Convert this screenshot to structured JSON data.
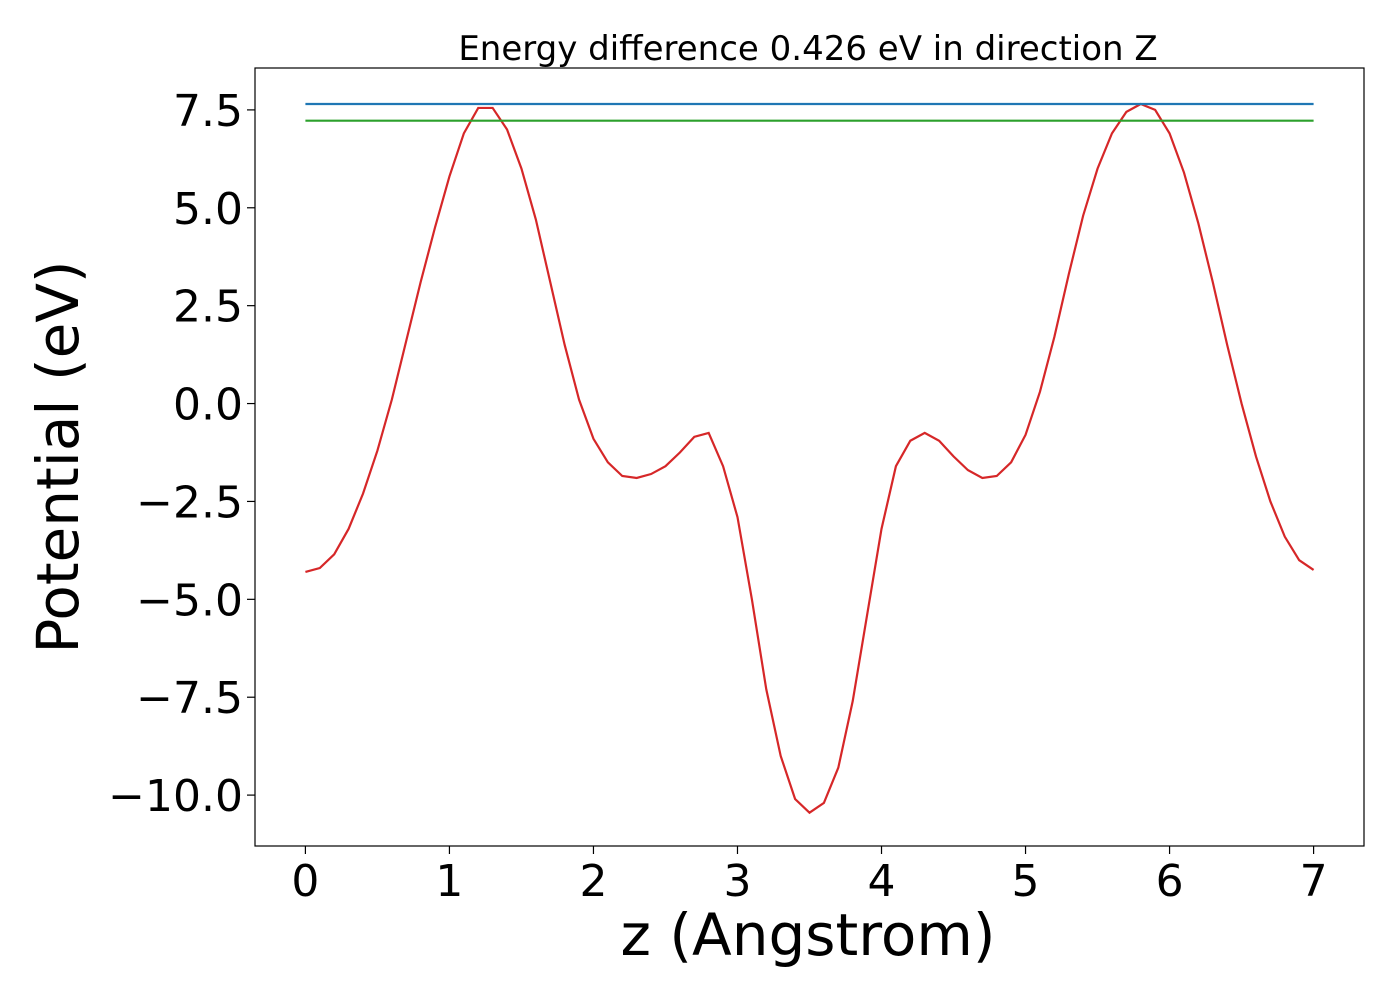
{
  "chart_data": {
    "type": "line",
    "title": "Energy difference 0.426 eV in direction Z",
    "xlabel": "z (Angstrom)",
    "ylabel": "Potential (eV)",
    "xlim": [
      -0.35,
      7.35
    ],
    "ylim": [
      -11.3,
      8.57
    ],
    "xticks": [
      0,
      1,
      2,
      3,
      4,
      5,
      6,
      7
    ],
    "yticks": [
      {
        "value": -10,
        "label": "−10.0"
      },
      {
        "value": -7.5,
        "label": "−7.5"
      },
      {
        "value": -5,
        "label": "−5.0"
      },
      {
        "value": -2.5,
        "label": "−2.5"
      },
      {
        "value": 0,
        "label": "0.0"
      },
      2.5,
      {
        "value": 5,
        "label": "5.0"
      },
      7.5
    ],
    "series": [
      {
        "color": "#d62728",
        "x": [
          0,
          0.1,
          0.2,
          0.3,
          0.4,
          0.5,
          0.6,
          0.7,
          0.8,
          0.9,
          1.0,
          1.1,
          1.2,
          1.3,
          1.4,
          1.5,
          1.6,
          1.7,
          1.8,
          1.9,
          2.0,
          2.1,
          2.2,
          2.3,
          2.4,
          2.5,
          2.6,
          2.7,
          2.8,
          2.9,
          3.0,
          3.1,
          3.2,
          3.3,
          3.4,
          3.5,
          3.6,
          3.7,
          3.8,
          3.9,
          4.0,
          4.1,
          4.2,
          4.3,
          4.4,
          4.5,
          4.6,
          4.7,
          4.8,
          4.9,
          5.0,
          5.1,
          5.2,
          5.3,
          5.4,
          5.5,
          5.6,
          5.7,
          5.8,
          5.9,
          6.0,
          6.1,
          6.2,
          6.3,
          6.4,
          6.5,
          6.6,
          6.7,
          6.8,
          6.9,
          7.0
        ],
        "values": [
          -4.3,
          -4.2,
          -3.85,
          -3.2,
          -2.3,
          -1.2,
          0.1,
          1.6,
          3.1,
          4.5,
          5.8,
          6.9,
          7.55,
          7.55,
          7.0,
          6.0,
          4.7,
          3.1,
          1.5,
          0.1,
          -0.9,
          -1.5,
          -1.85,
          -1.9,
          -1.8,
          -1.6,
          -1.25,
          -0.85,
          -0.75,
          -1.6,
          -2.9,
          -5.0,
          -7.3,
          -9.0,
          -10.1,
          -10.45,
          -10.2,
          -9.3,
          -7.6,
          -5.4,
          -3.2,
          -1.6,
          -0.95,
          -0.75,
          -0.95,
          -1.35,
          -1.7,
          -1.9,
          -1.85,
          -1.5,
          -0.8,
          0.3,
          1.7,
          3.3,
          4.8,
          6.0,
          6.9,
          7.45,
          7.65,
          7.5,
          6.9,
          5.9,
          4.6,
          3.1,
          1.5,
          0.0,
          -1.35,
          -2.5,
          -3.4,
          -4.0,
          -4.25
        ]
      },
      {
        "color": "#1f77b4",
        "x": [
          0,
          7
        ],
        "values": [
          7.65,
          7.65
        ]
      },
      {
        "color": "#2ca02c",
        "x": [
          0,
          7
        ],
        "values": [
          7.224,
          7.224
        ]
      }
    ]
  }
}
